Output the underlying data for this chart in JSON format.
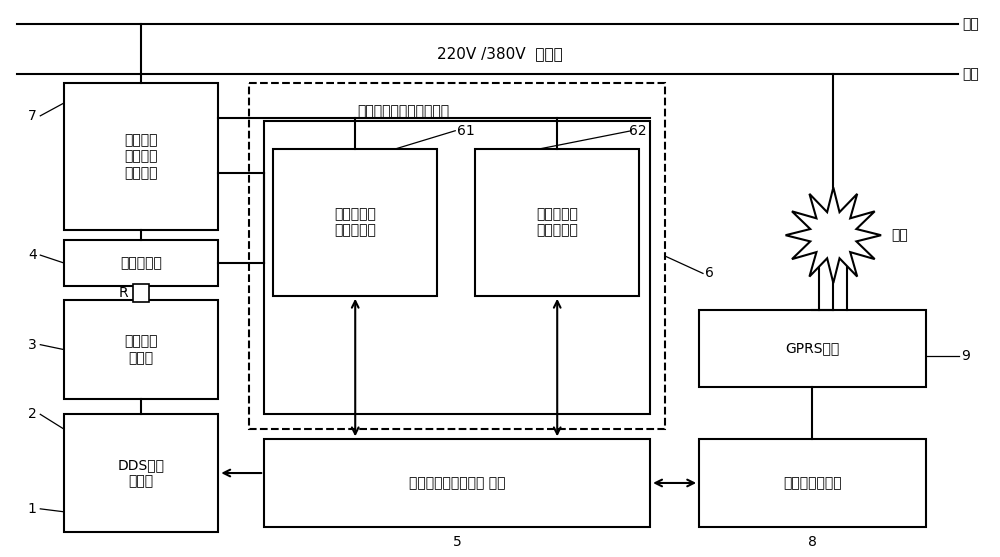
{
  "title": "220V /380V  电力线",
  "power_line_label": "火线",
  "ground_line_label": "地线",
  "antenna_label": "天线",
  "label_7": "7",
  "label_4": "4",
  "label_3": "3",
  "label_2": "2",
  "label_1": "1",
  "label_5": "5",
  "label_6": "6",
  "label_61": "61",
  "label_62": "62",
  "label_8": "8",
  "label_9": "9",
  "box1_text": "DDS载波\n信号源",
  "box2_text": "高频功率\n放大器",
  "box3_text": "校正单元\n失谐电路\n耦合单元",
  "box4_text": "高频变压器",
  "box61_text": "载波阻抗实\n部测试单元",
  "box62_text": "载波阻抗虚\n部测试单元",
  "box5_text": "嵌入式信号采集处理 系统",
  "box8_text": "嵌入式通信单元",
  "box9_text": "GPRS模块",
  "dashed_box_label": "自由坐标轴矢量测试单元",
  "resistor_label": "R",
  "bg_color": "#ffffff",
  "line_color": "#000000",
  "font_size": 10
}
